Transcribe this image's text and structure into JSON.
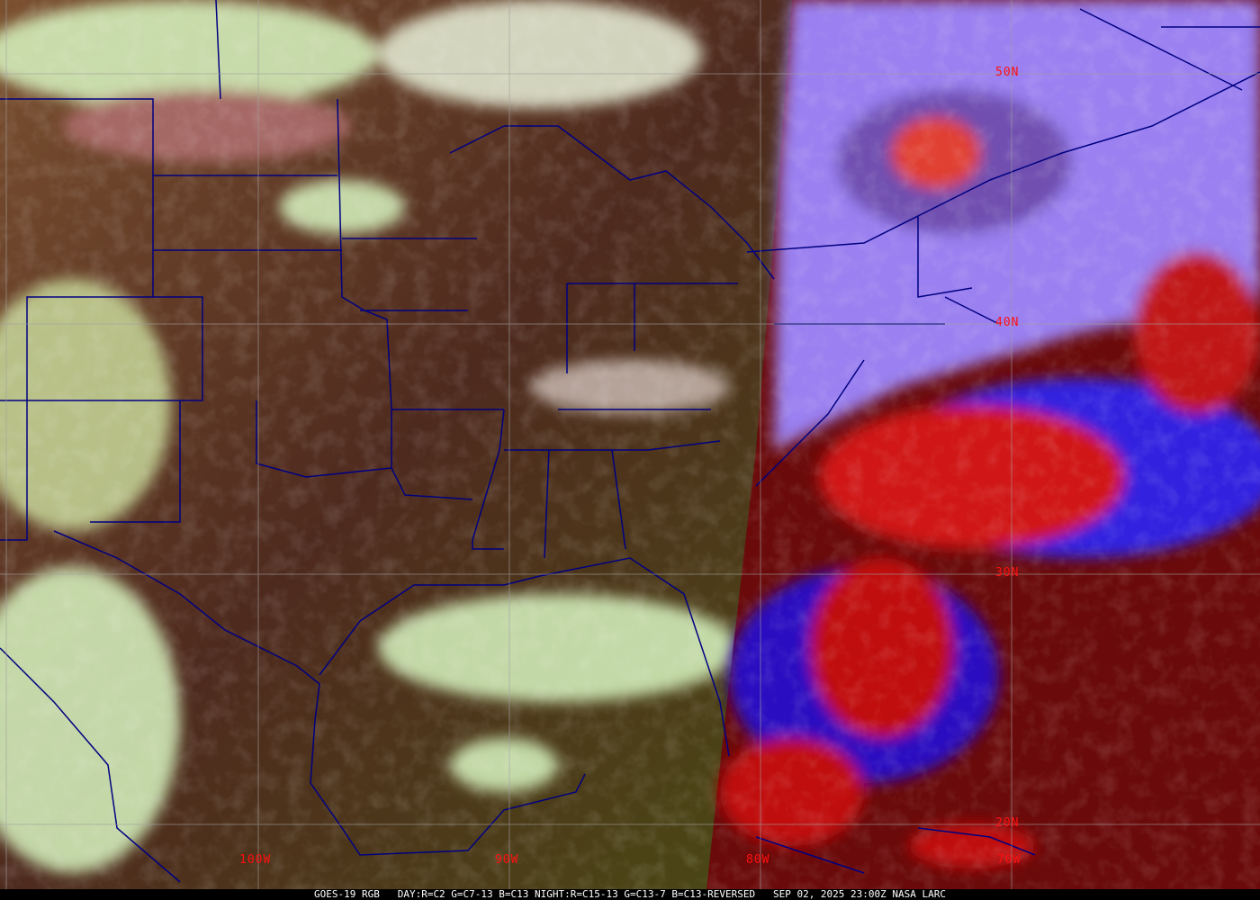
{
  "caption": {
    "product": "GOES-19 RGB",
    "day_recipe": "DAY:R=C2 G=C7-13 B=C13",
    "night_recipe": "NIGHT:R=C15-13 G=C13-7 B=C13-REVERSED",
    "datetime": "SEP 02, 2025 23:00Z",
    "source": "NASA LARC"
  },
  "latitude_labels": [
    "50N",
    "40N",
    "30N",
    "20N"
  ],
  "longitude_labels": [
    "100W",
    "90W",
    "80W",
    "70W"
  ],
  "colors": {
    "label": "#ff1010",
    "gridline": "#a0a0a0",
    "borders": "#000080",
    "day_land": "#5a3a20",
    "day_cloud": "#d8f5c0",
    "night_cloud": "#8a70f0",
    "night_cold_cloud": "#d01010",
    "night_sea": "#6a0a0a"
  }
}
